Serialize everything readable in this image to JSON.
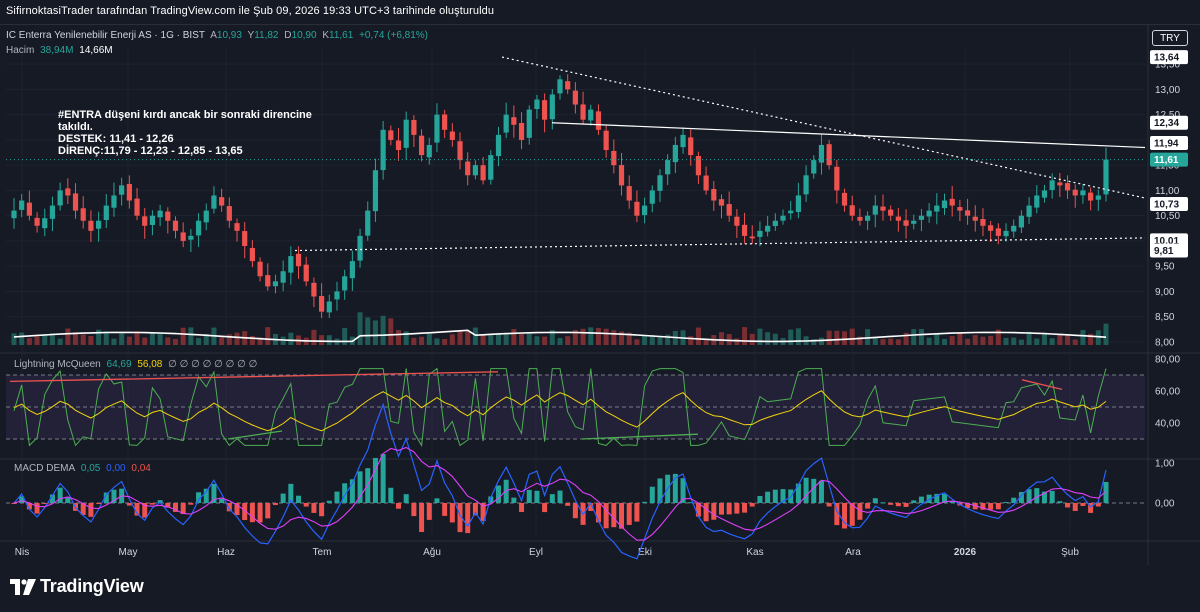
{
  "caption": "SifirnoktasiTrader tarafından TradingView.com ile Şub 09, 2026 19:33 UTC+3 tarihinde oluşturuldu",
  "currency": "TRY",
  "symbol_legend": {
    "name": "IC Enterra Yenilenebilir Enerji AS · 1G · BIST",
    "A_label": "A",
    "A_value": "10,93",
    "Y_label": "Y",
    "Y_value": "11,82",
    "D_label": "D",
    "D_value": "10,90",
    "K_label": "K",
    "K_value": "11,61",
    "change": "+0,74 (+6,81%)"
  },
  "volume_legend": {
    "label": "Hacim",
    "value1": "38,94M",
    "value2": "14,66M"
  },
  "annotation": "#ENTRA düşeni kırdı ancak bir sonraki direncine\ntakıldı.\nDESTEK: 11,41 - 12,26\nDİRENÇ:11,79 - 12,23 - 12,85 - 13,65",
  "rsi_legend": {
    "name": "Lightning McQueen",
    "v1": "64,69",
    "v2": "56,08",
    "rest": "∅ ∅ ∅ ∅ ∅ ∅ ∅ ∅"
  },
  "macd_legend": {
    "name": "MACD DEMA",
    "v1": "0,05",
    "v2": "0,00",
    "v3": "0,04"
  },
  "logo_text": "TradingView",
  "colors": {
    "up": "#26a69a",
    "down": "#ef5350",
    "bg": "#161a25",
    "grid": "#2a2e39",
    "text": "#d1d4dc"
  },
  "chart_data": [
    {
      "type": "candlestick",
      "x_ticks": [
        "Nis",
        "May",
        "Haz",
        "Tem",
        "Ağu",
        "Eyl",
        "Eki",
        "Kas",
        "Ara",
        "2026",
        "Şub"
      ],
      "ylim": [
        7.9,
        13.8
      ],
      "y_ticks": [
        "8,00",
        "8,50",
        "9,00",
        "9,50",
        "10,00",
        "10,50",
        "11,00",
        "11,50",
        "12,00",
        "12,50",
        "13,00",
        "13,50"
      ],
      "price_labels": [
        {
          "value": 13.64,
          "text": "13,64",
          "style": "white"
        },
        {
          "value": 12.34,
          "text": "12,34",
          "style": "white"
        },
        {
          "value": 11.94,
          "text": "11,94",
          "style": "white"
        },
        {
          "value": 11.61,
          "text": "11,61",
          "style": "green"
        },
        {
          "value": 10.73,
          "text": "10,73",
          "style": "white"
        },
        {
          "value": 10.01,
          "text": "10,01",
          "style": "white"
        },
        {
          "value": 9.81,
          "text": "9,81",
          "style": "white"
        }
      ],
      "last_price": 11.61,
      "closes": [
        10.6,
        10.8,
        10.5,
        10.3,
        10.45,
        10.7,
        11.0,
        10.9,
        10.6,
        10.4,
        10.2,
        10.4,
        10.7,
        10.9,
        11.1,
        10.8,
        10.5,
        10.3,
        10.5,
        10.6,
        10.4,
        10.2,
        10.0,
        10.1,
        10.4,
        10.6,
        10.9,
        10.7,
        10.4,
        10.2,
        9.9,
        9.6,
        9.3,
        9.1,
        9.2,
        9.4,
        9.7,
        9.5,
        9.2,
        8.9,
        8.6,
        8.8,
        9.0,
        9.3,
        9.6,
        10.1,
        10.6,
        11.4,
        12.2,
        12.0,
        11.8,
        12.4,
        12.1,
        11.7,
        11.9,
        12.5,
        12.2,
        12.0,
        11.6,
        11.3,
        11.5,
        11.2,
        11.7,
        12.1,
        12.5,
        12.3,
        12.0,
        12.6,
        12.8,
        12.4,
        12.9,
        13.2,
        13.0,
        12.7,
        12.4,
        12.6,
        12.2,
        11.8,
        11.5,
        11.1,
        10.8,
        10.5,
        10.7,
        11.0,
        11.3,
        11.6,
        11.9,
        12.1,
        11.7,
        11.3,
        11.0,
        10.8,
        10.7,
        10.5,
        10.3,
        10.1,
        10.05,
        10.2,
        10.3,
        10.4,
        10.5,
        10.6,
        10.9,
        11.3,
        11.6,
        11.9,
        11.5,
        11.0,
        10.7,
        10.5,
        10.4,
        10.5,
        10.7,
        10.6,
        10.5,
        10.4,
        10.3,
        10.4,
        10.5,
        10.6,
        10.7,
        10.8,
        10.7,
        10.6,
        10.5,
        10.4,
        10.3,
        10.2,
        10.1,
        10.2,
        10.3,
        10.5,
        10.7,
        10.9,
        11.0,
        11.2,
        11.1,
        11.0,
        10.9,
        11.0,
        10.8,
        10.9,
        11.61
      ],
      "volume_ylim": [
        0,
        4
      ]
    },
    {
      "type": "line",
      "name": "Lightning McQueen",
      "ylim": [
        20,
        80
      ],
      "y_ticks": [
        "40,00",
        "60,00",
        "80,00"
      ],
      "levels": [
        70,
        50,
        30
      ],
      "last_values": [
        64.69,
        56.08
      ]
    },
    {
      "type": "histogram",
      "name": "MACD DEMA",
      "ylim": [
        -0.8,
        1.0
      ],
      "y_ticks": [
        "0,00",
        "1,00"
      ],
      "last_values": [
        0.05,
        0.0,
        0.04
      ]
    }
  ]
}
